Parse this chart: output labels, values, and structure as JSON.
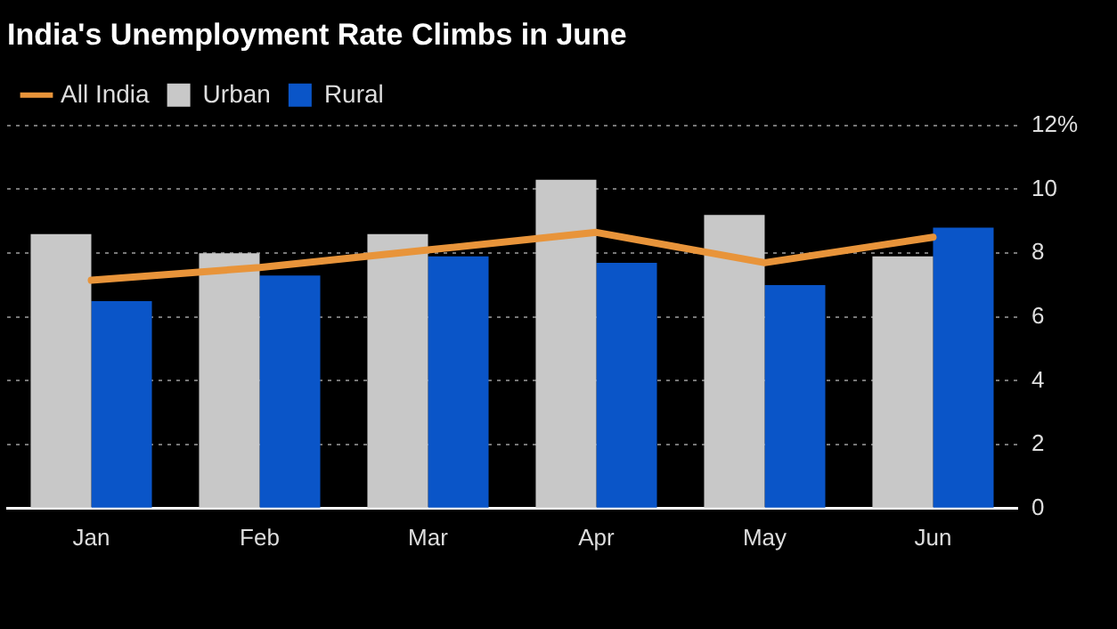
{
  "chart_data": {
    "type": "bar",
    "title": "India's Unemployment Rate Climbs in June",
    "categories": [
      "Jan",
      "Feb",
      "Mar",
      "Apr",
      "May",
      "Jun"
    ],
    "series": [
      {
        "name": "All India",
        "type": "line",
        "color": "#e8943a",
        "values": [
          7.15,
          7.55,
          8.1,
          8.65,
          7.7,
          8.5
        ]
      },
      {
        "name": "Urban",
        "color": "#c8c8c8",
        "values": [
          8.6,
          8.0,
          8.6,
          10.3,
          9.2,
          7.9
        ]
      },
      {
        "name": "Rural",
        "color": "#0a55c8",
        "values": [
          6.5,
          7.3,
          7.9,
          7.7,
          7.0,
          8.8
        ]
      }
    ],
    "ylim": [
      0,
      12
    ],
    "yticks": [
      0,
      2,
      4,
      6,
      8,
      10,
      {
        "value": 12,
        "label": "12%"
      }
    ],
    "grid": "y",
    "legend": "top left",
    "marker": "none"
  }
}
